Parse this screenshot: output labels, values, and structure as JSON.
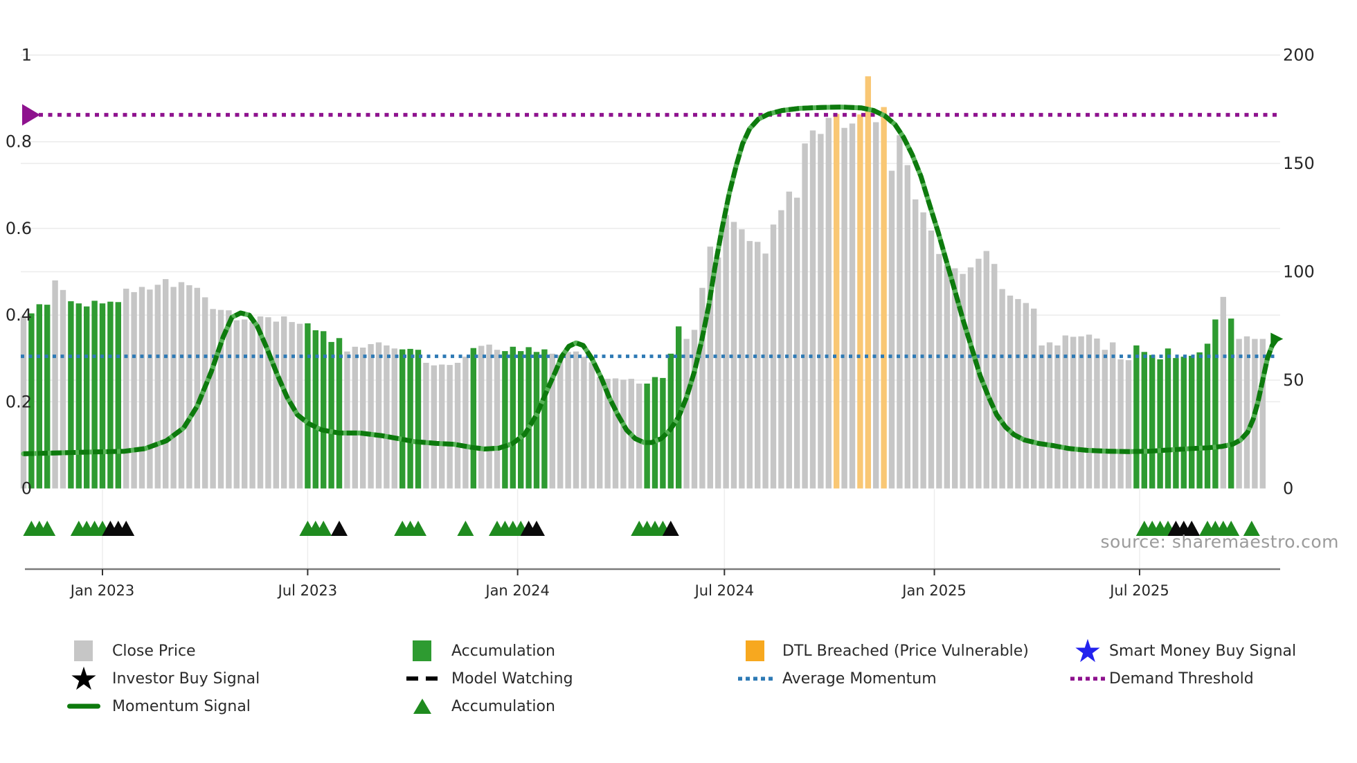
{
  "source_credit": "source: sharemaestro.com",
  "colors": {
    "bar_gray": "#c6c6c6",
    "bar_green": "#2e9b31",
    "bar_orange": "#f9c774",
    "momentum_dark": "#0d7a0d",
    "momentum_light": "#57b357",
    "avg_momentum_blue": "#2e7ab5",
    "demand_purple": "#8e128e",
    "triangle_green": "#1f8b1f",
    "triangle_black": "#0a0a0a",
    "star_blue": "#2222ee",
    "legend_orange": "#f7a81f",
    "axis_line": "#7a7a7a",
    "grid": "#ebebeb",
    "tick_text": "#262626"
  },
  "chart_data": {
    "type": "bar",
    "title": "",
    "xlabel": "",
    "ylabel_left": "",
    "ylabel_right": "",
    "left_axis_ticks": [
      0,
      0.2,
      0.4,
      0.6,
      0.8,
      1
    ],
    "right_axis_ticks": [
      0,
      50,
      100,
      150,
      200
    ],
    "left_axis_range": [
      0,
      1
    ],
    "right_axis_range": [
      0,
      200
    ],
    "x_tick_labels": [
      "Jan 2023",
      "Jul 2023",
      "Jan 2024",
      "Jul 2024",
      "Jan 2025",
      "Jul 2025"
    ],
    "x_tick_index": [
      10,
      36,
      62.6,
      88.8,
      115.4,
      141.4
    ],
    "average_momentum_value": 0.305,
    "demand_threshold_value": 0.862,
    "close_price_bars": [
      79.4,
      80.8,
      85,
      84.8,
      96,
      91.6,
      86.4,
      85.4,
      84,
      86.6,
      85.4,
      86.2,
      86,
      92.2,
      90.6,
      93,
      91.8,
      94,
      96.6,
      93,
      95.2,
      93.8,
      92.6,
      88.2,
      82.8,
      82.4,
      82.2,
      77.6,
      78,
      76.8,
      79.4,
      79,
      77,
      79.4,
      76.8,
      76,
      76.2,
      73,
      72.6,
      67.6,
      69.4,
      63.2,
      65.4,
      65,
      66.6,
      67.4,
      66,
      64.6,
      64.2,
      64.4,
      64,
      58,
      56.8,
      57.2,
      57,
      58,
      60.8,
      64.8,
      65.8,
      66.4,
      64,
      63.4,
      65.4,
      63.4,
      65.2,
      63,
      64.2,
      62.2,
      61.6,
      63,
      63.2,
      60.8,
      58.2,
      51.4,
      50.6,
      50.8,
      50.2,
      50.6,
      48.4,
      48.4,
      51.4,
      51,
      62.2,
      74.8,
      69,
      73.2,
      92.6,
      111.6,
      106.6,
      126.2,
      123,
      119.6,
      114.2,
      113.8,
      108.4,
      121.8,
      128.4,
      137,
      134.2,
      159.2,
      165.2,
      163.6,
      171,
      172.8,
      166.4,
      168.4,
      172.6,
      190.2,
      169,
      176,
      146.6,
      163,
      149.2,
      133.4,
      127.4,
      119,
      108.2,
      103.2,
      101.6,
      99,
      102,
      106,
      109.6,
      103.6,
      92,
      89,
      87.4,
      85.6,
      83,
      66,
      67.4,
      66,
      70.6,
      70,
      70.2,
      71,
      69.2,
      64,
      67.4,
      59.6,
      59.2,
      66,
      63,
      61.6,
      59.6,
      64.6,
      60.2,
      60.8,
      61.2,
      62.8,
      66.8,
      78,
      88.4,
      78.4,
      69,
      70.2,
      69,
      69
    ],
    "bar_color_key": "g=close-price gray, G=accumulation green, O=DTL-breached orange",
    "bar_colors": "gGGGggGGGGGGGgggggggggggggggggggggggGGGGGgggggggGGGggggggGgggGGGGGGggggggggggggGGGGGgggggggggggggggggggOggOOgOgggggggggggggggggggggggggggggggGGGGGGGGGGGgGgggg",
    "momentum_line_points": [
      [
        0,
        0.08
      ],
      [
        4,
        0.082
      ],
      [
        8.4,
        0.084
      ],
      [
        12.8,
        0.086
      ],
      [
        15.4,
        0.092
      ],
      [
        18.1,
        0.11
      ],
      [
        20.3,
        0.14
      ],
      [
        22,
        0.19
      ],
      [
        23.8,
        0.27
      ],
      [
        25.3,
        0.35
      ],
      [
        26.4,
        0.395
      ],
      [
        27.5,
        0.405
      ],
      [
        28.6,
        0.4
      ],
      [
        29.6,
        0.375
      ],
      [
        30.8,
        0.325
      ],
      [
        32.1,
        0.265
      ],
      [
        33.4,
        0.21
      ],
      [
        34.7,
        0.17
      ],
      [
        36.1,
        0.15
      ],
      [
        37.8,
        0.135
      ],
      [
        40,
        0.128
      ],
      [
        42.6,
        0.128
      ],
      [
        45.3,
        0.122
      ],
      [
        47.5,
        0.115
      ],
      [
        49.6,
        0.108
      ],
      [
        52.3,
        0.104
      ],
      [
        54.5,
        0.102
      ],
      [
        56.7,
        0.095
      ],
      [
        58.4,
        0.091
      ],
      [
        60.2,
        0.093
      ],
      [
        61.9,
        0.103
      ],
      [
        63.5,
        0.125
      ],
      [
        65,
        0.17
      ],
      [
        66.3,
        0.225
      ],
      [
        67.4,
        0.27
      ],
      [
        68.2,
        0.305
      ],
      [
        69.1,
        0.328
      ],
      [
        70,
        0.336
      ],
      [
        70.9,
        0.33
      ],
      [
        72,
        0.3
      ],
      [
        73.2,
        0.255
      ],
      [
        74.2,
        0.21
      ],
      [
        75.3,
        0.17
      ],
      [
        76.4,
        0.135
      ],
      [
        77.5,
        0.115
      ],
      [
        78.6,
        0.106
      ],
      [
        79.6,
        0.106
      ],
      [
        80.8,
        0.115
      ],
      [
        81.9,
        0.135
      ],
      [
        83,
        0.165
      ],
      [
        84,
        0.21
      ],
      [
        85,
        0.27
      ],
      [
        85.9,
        0.34
      ],
      [
        86.8,
        0.42
      ],
      [
        87.6,
        0.51
      ],
      [
        88.5,
        0.6
      ],
      [
        89.4,
        0.68
      ],
      [
        90.3,
        0.745
      ],
      [
        91.1,
        0.795
      ],
      [
        92,
        0.83
      ],
      [
        93.1,
        0.852
      ],
      [
        94.4,
        0.864
      ],
      [
        96.1,
        0.872
      ],
      [
        98.3,
        0.877
      ],
      [
        101,
        0.879
      ],
      [
        103.6,
        0.88
      ],
      [
        106.2,
        0.878
      ],
      [
        107.7,
        0.872
      ],
      [
        109.1,
        0.86
      ],
      [
        110.4,
        0.84
      ],
      [
        111.5,
        0.81
      ],
      [
        112.6,
        0.77
      ],
      [
        113.7,
        0.72
      ],
      [
        114.7,
        0.66
      ],
      [
        115.9,
        0.59
      ],
      [
        117,
        0.52
      ],
      [
        118.1,
        0.45
      ],
      [
        119.1,
        0.385
      ],
      [
        120.2,
        0.32
      ],
      [
        121.2,
        0.26
      ],
      [
        122.3,
        0.21
      ],
      [
        123.3,
        0.17
      ],
      [
        124.4,
        0.142
      ],
      [
        125.5,
        0.124
      ],
      [
        126.8,
        0.112
      ],
      [
        128.6,
        0.104
      ],
      [
        130.4,
        0.099
      ],
      [
        132.5,
        0.092
      ],
      [
        134.7,
        0.088
      ],
      [
        137.4,
        0.086
      ],
      [
        140,
        0.085
      ],
      [
        142.6,
        0.086
      ],
      [
        145.3,
        0.089
      ],
      [
        147.9,
        0.092
      ],
      [
        150.1,
        0.094
      ],
      [
        151.8,
        0.097
      ],
      [
        153.2,
        0.102
      ],
      [
        154.2,
        0.112
      ],
      [
        155.1,
        0.13
      ],
      [
        155.8,
        0.16
      ],
      [
        156.4,
        0.2
      ],
      [
        157,
        0.25
      ],
      [
        157.6,
        0.3
      ],
      [
        158.2,
        0.33
      ],
      [
        158.8,
        0.345
      ]
    ],
    "accumulation_markers_index": [
      1,
      2,
      3,
      7,
      8,
      9,
      10,
      36,
      37,
      38,
      48,
      49,
      50,
      56,
      60,
      61,
      62,
      63,
      78,
      79,
      80,
      81,
      142,
      143,
      144,
      145,
      150,
      151,
      152,
      153,
      155.6
    ],
    "investor_buy_markers_index": [
      11,
      12,
      13,
      40,
      64,
      65,
      82,
      146,
      147,
      148
    ]
  },
  "legend": {
    "columns": [
      {
        "items": [
          {
            "icon": "square-gray-icon",
            "label": "Close Price"
          },
          {
            "icon": "star-black-icon",
            "label": "Investor Buy Signal"
          },
          {
            "icon": "line-green-icon",
            "label": "Momentum Signal"
          }
        ]
      },
      {
        "items": [
          {
            "icon": "square-green-icon",
            "label": "Accumulation"
          },
          {
            "icon": "dashes-black-icon",
            "label": "Model Watching"
          },
          {
            "icon": "triangle-green-icon",
            "label": "Accumulation"
          }
        ]
      },
      {
        "items": [
          {
            "icon": "square-orange-icon",
            "label": "DTL Breached (Price Vulnerable)"
          },
          {
            "icon": "dots-blue-icon",
            "label": "Average Momentum"
          }
        ]
      },
      {
        "items": [
          {
            "icon": "star-blue-icon",
            "label": "Smart Money Buy Signal"
          },
          {
            "icon": "dots-purple-icon",
            "label": "Demand Threshold"
          }
        ]
      }
    ]
  }
}
